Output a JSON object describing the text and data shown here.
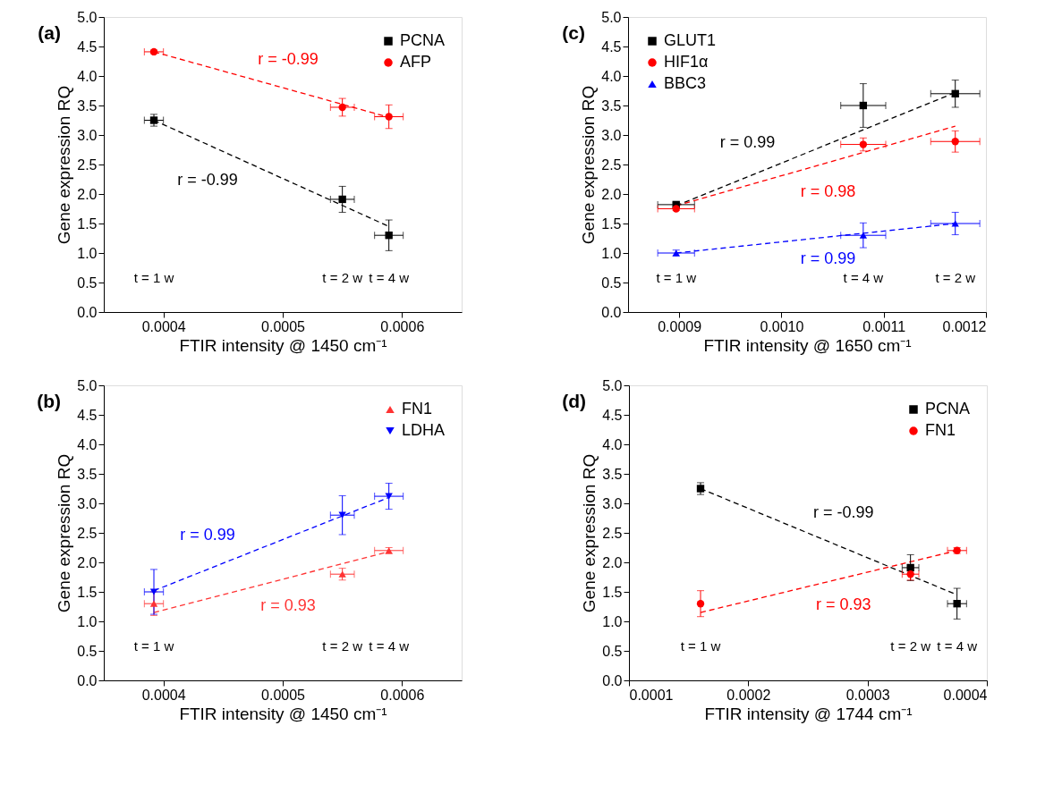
{
  "chart_data": [
    {
      "type": "scatter",
      "xlabel": "FTIR intensity @ 1450 cm⁻¹",
      "ylabel": "Gene expression RQ",
      "xlim": [
        0.00035,
        0.00065
      ],
      "xticks": [
        0.0004,
        0.0005,
        0.0006
      ],
      "ylim": [
        0,
        5
      ],
      "yticks": [
        {
          "value": 0,
          "label": "0.0"
        },
        0.5,
        {
          "value": 1,
          "label": "1.0"
        },
        1.5,
        {
          "value": 2,
          "label": "2.0"
        },
        2.5,
        {
          "value": 3,
          "label": "3.0"
        },
        3.5,
        {
          "value": 4,
          "label": "4.0"
        },
        4.5,
        {
          "value": 5,
          "label": "5.0"
        }
      ],
      "grid": false,
      "legend": "top right",
      "series": [
        {
          "name": "PCNA",
          "marker": "square",
          "color": "#000000",
          "x": [
            0.000392,
            0.00055,
            0.000589
          ],
          "values": [
            3.25,
            1.91,
            1.3
          ],
          "errors": [
            0.1,
            0.22,
            0.26
          ],
          "xerrors": [
            8e-06,
            1e-05,
            1.2e-05
          ]
        },
        {
          "name": "AFP",
          "marker": "circle",
          "color": "#ff0000",
          "x": [
            0.000392,
            0.00055,
            0.000589
          ],
          "values": [
            4.41,
            3.47,
            3.31
          ],
          "errors": [
            0.03,
            0.15,
            0.2
          ],
          "xerrors": [
            8e-06,
            1e-05,
            1.2e-05
          ]
        },
        {
          "name": "r = -0.99",
          "type": "line",
          "line_style": "dashed",
          "color": "#000000",
          "x": [
            0.000392,
            0.000589
          ],
          "values": [
            3.25,
            1.45
          ]
        },
        {
          "name": "r = -0.99",
          "type": "line",
          "line_style": "dashed",
          "color": "#ff0000",
          "x": [
            0.000392,
            0.000589
          ],
          "values": [
            4.41,
            3.3
          ]
        }
      ],
      "annotations": [
        "(a)",
        "t = 1 w",
        "t = 2 w",
        "t = 4 w"
      ]
    },
    {
      "type": "scatter",
      "xlabel": "FTIR intensity @ 1650 cm⁻¹",
      "ylabel": "Gene expression RQ",
      "xlim": [
        0.00085,
        0.0012
      ],
      "xticks": [
        0.0009,
        {
          "value": 0.001,
          "label": "0.0010"
        },
        0.0011,
        0.0012
      ],
      "ylim": [
        0,
        5
      ],
      "yticks": [
        {
          "value": 0,
          "label": "0.0"
        },
        0.5,
        {
          "value": 1,
          "label": "1.0"
        },
        1.5,
        {
          "value": 2,
          "label": "2.0"
        },
        2.5,
        {
          "value": 3,
          "label": "3.0"
        },
        3.5,
        {
          "value": 4,
          "label": "4.0"
        },
        4.5,
        {
          "value": 5,
          "label": "5.0"
        }
      ],
      "grid": false,
      "legend": "top left",
      "series": [
        {
          "name": "GLUT1",
          "marker": "square",
          "color": "#000000",
          "x": [
            0.000897,
            0.00108,
            0.00117
          ],
          "values": [
            1.82,
            3.5,
            3.7
          ],
          "errors": [
            0.03,
            0.37,
            0.23
          ],
          "xerrors": [
            1.8e-05,
            2.2e-05,
            2.4e-05
          ]
        },
        {
          "name": "HIF1α",
          "marker": "circle",
          "color": "#ff0000",
          "x": [
            0.000897,
            0.00108,
            0.00117
          ],
          "values": [
            1.75,
            2.84,
            2.89
          ],
          "errors": [
            0.03,
            0.11,
            0.18
          ],
          "xerrors": [
            1.8e-05,
            2.2e-05,
            2.4e-05
          ]
        },
        {
          "name": "BBC3",
          "marker": "triangle",
          "color": "#0000ff",
          "x": [
            0.000897,
            0.00108,
            0.00117
          ],
          "values": [
            1.0,
            1.3,
            1.5
          ],
          "errors": [
            0.05,
            0.21,
            0.19
          ],
          "xerrors": [
            1.8e-05,
            2.2e-05,
            2.4e-05
          ]
        },
        {
          "name": "r = 0.99",
          "type": "line",
          "line_style": "dashed",
          "color": "#000000",
          "x": [
            0.000897,
            0.00117
          ],
          "values": [
            1.8,
            3.72
          ]
        },
        {
          "name": "r = 0.98",
          "type": "line",
          "line_style": "dashed",
          "color": "#ff0000",
          "x": [
            0.000897,
            0.00117
          ],
          "values": [
            1.8,
            3.15
          ]
        },
        {
          "name": "r = 0.99",
          "type": "line",
          "line_style": "dashed",
          "color": "#0000ff",
          "x": [
            0.000897,
            0.00117
          ],
          "values": [
            1.0,
            1.5
          ]
        }
      ],
      "annotations": [
        "(c)",
        "t = 1 w",
        "t = 4 w",
        "t = 2 w"
      ]
    },
    {
      "type": "scatter",
      "xlabel": "FTIR intensity @ 1450 cm⁻¹",
      "ylabel": "Gene expression RQ",
      "xlim": [
        0.00035,
        0.00065
      ],
      "xticks": [
        0.0004,
        0.0005,
        0.0006
      ],
      "ylim": [
        0,
        5
      ],
      "yticks": [
        {
          "value": 0,
          "label": "0.0"
        },
        0.5,
        {
          "value": 1,
          "label": "1.0"
        },
        1.5,
        {
          "value": 2,
          "label": "2.0"
        },
        2.5,
        {
          "value": 3,
          "label": "3.0"
        },
        3.5,
        {
          "value": 4,
          "label": "4.0"
        },
        4.5,
        {
          "value": 5,
          "label": "5.0"
        }
      ],
      "grid": false,
      "legend": "top right",
      "series": [
        {
          "name": "FN1",
          "marker": "triangle",
          "color": "#ff3333",
          "x": [
            0.000392,
            0.00055,
            0.000589
          ],
          "values": [
            1.3,
            1.8,
            2.2
          ],
          "errors": [
            0.2,
            0.1,
            0.05
          ],
          "xerrors": [
            8e-06,
            1e-05,
            1.2e-05
          ]
        },
        {
          "name": "LDHA",
          "marker": "triangle-down",
          "color": "#0000ff",
          "x": [
            0.000392,
            0.00055,
            0.000589
          ],
          "values": [
            1.5,
            2.8,
            3.12
          ],
          "errors": [
            0.38,
            0.33,
            0.22
          ],
          "xerrors": [
            8e-06,
            1e-05,
            1.2e-05
          ]
        },
        {
          "name": "r = 0.99",
          "type": "line",
          "line_style": "dashed",
          "color": "#0000ff",
          "x": [
            0.000392,
            0.000589
          ],
          "values": [
            1.52,
            3.1
          ]
        },
        {
          "name": "r = 0.93",
          "type": "line",
          "line_style": "dashed",
          "color": "#ff3333",
          "x": [
            0.000392,
            0.000589
          ],
          "values": [
            1.15,
            2.18
          ]
        }
      ],
      "annotations": [
        "(b)",
        "t = 1 w",
        "t = 2 w",
        "t = 4 w"
      ]
    },
    {
      "type": "scatter",
      "xlabel": "FTIR intensity @ 1744 cm⁻¹",
      "ylabel": "Gene expression RQ",
      "xlim": [
        0.0001,
        0.0004
      ],
      "xticks": [
        0.0001,
        0.0002,
        0.0003,
        0.0004
      ],
      "ylim": [
        0,
        5
      ],
      "yticks": [
        {
          "value": 0,
          "label": "0.0"
        },
        0.5,
        {
          "value": 1,
          "label": "1.0"
        },
        1.5,
        {
          "value": 2,
          "label": "2.0"
        },
        2.5,
        {
          "value": 3,
          "label": "3.0"
        },
        3.5,
        {
          "value": 4,
          "label": "4.0"
        },
        4.5,
        {
          "value": 5,
          "label": "5.0"
        }
      ],
      "grid": false,
      "legend": "top right",
      "series": [
        {
          "name": "PCNA",
          "marker": "square",
          "color": "#000000",
          "x": [
            0.00016,
            0.000336,
            0.000375
          ],
          "values": [
            3.25,
            1.91,
            1.3
          ],
          "errors": [
            0.1,
            0.22,
            0.26
          ],
          "xerrors": [
            null,
            7e-06,
            8e-06
          ]
        },
        {
          "name": "FN1",
          "marker": "circle",
          "color": "#ff0000",
          "x": [
            0.00016,
            0.000336,
            0.000375
          ],
          "values": [
            1.3,
            1.8,
            2.2
          ],
          "errors": [
            0.22,
            0.1,
            0.05
          ],
          "xerrors": [
            null,
            7e-06,
            8e-06
          ]
        },
        {
          "name": "r = -0.99",
          "type": "line",
          "line_style": "dashed",
          "color": "#000000",
          "x": [
            0.00016,
            0.000375
          ],
          "values": [
            3.25,
            1.45
          ]
        },
        {
          "name": "r = 0.93",
          "type": "line",
          "line_style": "dashed",
          "color": "#ff0000",
          "x": [
            0.00016,
            0.000375
          ],
          "values": [
            1.15,
            2.2
          ]
        }
      ],
      "annotations": [
        "(d)",
        "t = 1 w",
        "t = 2 w",
        "t = 4 w"
      ]
    }
  ]
}
